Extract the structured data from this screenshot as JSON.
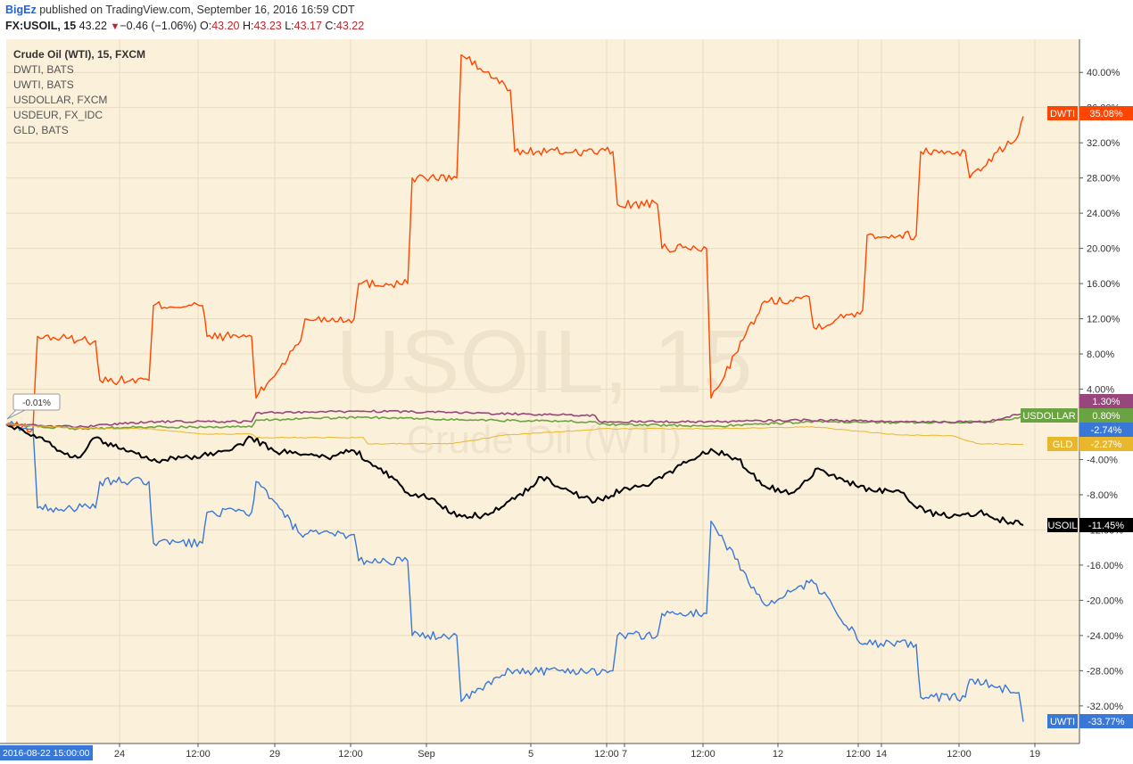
{
  "header": {
    "user": "BigEz",
    "published": "published on TradingView.com, September 16, 2016 16:59 CDT",
    "symbol": "FX:USOIL, 15",
    "last": "43.22",
    "change": "−0.46 (−1.06%)",
    "o_label": "O:",
    "o_value": "43.20",
    "h_label": "H:",
    "h_value": "43.23",
    "l_label": "L:",
    "l_value": "43.17",
    "c_label": "C:",
    "c_value": "43.22"
  },
  "watermark": {
    "symbol": "USOIL, 15",
    "name": "Crude Oil (WTI)"
  },
  "tooltip": "-0.01%",
  "colors": {
    "background": "#fbf0d9",
    "grid": "#e8dcc2",
    "DWTI": "#ff4500",
    "UWTI": "#3a78d8",
    "USOIL": "#000000",
    "USDOLLAR": "#6ba342",
    "USDEUR": "#98477c",
    "GLD": "#e8b72c"
  },
  "chart_data": {
    "type": "line",
    "title": "Crude Oil (WTI), 15, FXCM",
    "legend": [
      "DWTI, BATS",
      "UWTI, BATS",
      "USDOLLAR, FXCM",
      "USDEUR, FX_IDC",
      "GLD, BATS"
    ],
    "x_ticks": [
      "24",
      "12:00",
      "29",
      "12:00",
      "Sep",
      "5",
      "12:00",
      "7",
      "12:00",
      "12",
      "12:00",
      "14",
      "12:00",
      "19"
    ],
    "x_start_label": "2016-08-22 15:00:00",
    "y_ticks": [
      "40.00%",
      "36.00%",
      "32.00%",
      "28.00%",
      "24.00%",
      "20.00%",
      "16.00%",
      "12.00%",
      "8.00%",
      "4.00%",
      "-4.00%",
      "-8.00%",
      "-12.00%",
      "-16.00%",
      "-20.00%",
      "-24.00%",
      "-28.00%",
      "-32.00%"
    ],
    "ylim": [
      -35,
      43
    ],
    "y_unit": "%",
    "series": [
      {
        "name": "DWTI",
        "last": "35.08%",
        "x": [
          0,
          30,
          35,
          100,
          105,
          160,
          165,
          220,
          225,
          275,
          280,
          330,
          335,
          390,
          395,
          450,
          455,
          505,
          510,
          565,
          570,
          680,
          685,
          730,
          735,
          785,
          790,
          850,
          855,
          900,
          905,
          960,
          965,
          1020,
          1025,
          1075,
          1080,
          1135,
          1140
        ],
        "y": [
          0,
          -0.5,
          10,
          9.5,
          5,
          5,
          13.5,
          13.5,
          10,
          10,
          3,
          9.5,
          12,
          12,
          16,
          16,
          28,
          28,
          42,
          38,
          31,
          31,
          25,
          25,
          20,
          20,
          3,
          14,
          14,
          14.5,
          11,
          13,
          21.5,
          21.5,
          31,
          31,
          28,
          33,
          35
        ]
      },
      {
        "name": "UWTI",
        "last": "-33.77%",
        "x": [
          0,
          30,
          35,
          100,
          105,
          160,
          165,
          220,
          225,
          275,
          280,
          330,
          335,
          390,
          395,
          450,
          455,
          505,
          510,
          565,
          570,
          680,
          685,
          730,
          735,
          785,
          790,
          850,
          855,
          900,
          905,
          960,
          965,
          1020,
          1025,
          1075,
          1080,
          1135,
          1140
        ],
        "y": [
          0,
          -0.5,
          -9.5,
          -9.5,
          -6.5,
          -6.5,
          -13.5,
          -13.5,
          -10,
          -10,
          -6.5,
          -12.5,
          -12.5,
          -12.5,
          -15.5,
          -15.5,
          -24,
          -24,
          -31.5,
          -28,
          -28,
          -28,
          -24,
          -24,
          -21.5,
          -21.5,
          -11,
          -20.5,
          -20.5,
          -18,
          -18,
          -25,
          -25,
          -25,
          -31,
          -31,
          -29,
          -30.5,
          -33.8
        ]
      },
      {
        "name": "USOIL",
        "last": "-11.45%",
        "x": [
          0,
          40,
          60,
          80,
          100,
          120,
          140,
          160,
          190,
          220,
          250,
          275,
          300,
          330,
          360,
          390,
          420,
          450,
          480,
          505,
          540,
          570,
          600,
          630,
          660,
          690,
          720,
          750,
          790,
          820,
          850,
          880,
          910,
          940,
          970,
          1000,
          1030,
          1060,
          1090,
          1120,
          1140
        ],
        "y": [
          0,
          -1.5,
          -3,
          -3.8,
          -1.5,
          -2.5,
          -3,
          -4,
          -4,
          -3.5,
          -3,
          -1.5,
          -3,
          -3.5,
          -3.8,
          -3,
          -5,
          -7.8,
          -8.5,
          -10.5,
          -10.3,
          -8.5,
          -6,
          -7.5,
          -8.8,
          -7.5,
          -7,
          -5,
          -2.8,
          -4,
          -7,
          -7.8,
          -5,
          -6.5,
          -7.5,
          -7.5,
          -10,
          -10.5,
          -10,
          -11,
          -11.45
        ]
      },
      {
        "name": "USDOLLAR",
        "last": "0.80%",
        "x": [
          0,
          80,
          160,
          275,
          280,
          400,
          520,
          660,
          665,
          800,
          900,
          1000,
          1100,
          1140
        ],
        "y": [
          0,
          -0.5,
          -0.3,
          -0.3,
          0.5,
          0.8,
          0.5,
          0.3,
          0,
          -0.2,
          0.3,
          0.2,
          0.3,
          0.8
        ]
      },
      {
        "name": "USDEUR",
        "last": "1.30%",
        "x": [
          0,
          80,
          160,
          275,
          280,
          400,
          520,
          660,
          665,
          800,
          900,
          1000,
          1100,
          1140
        ],
        "y": [
          0,
          -0.3,
          0.3,
          0.3,
          1.3,
          1.5,
          1.3,
          1,
          0.3,
          0.3,
          0.5,
          0.3,
          0.3,
          1.3
        ]
      },
      {
        "name": "GLD",
        "last": "-2.27%",
        "x": [
          0,
          100,
          160,
          220,
          275,
          280,
          330,
          400,
          405,
          500,
          560,
          660,
          665,
          760,
          800,
          900,
          905,
          1000,
          1060,
          1090,
          1100,
          1140
        ],
        "y": [
          0,
          -0.5,
          -0.5,
          -1.1,
          -1.1,
          -1.5,
          -1.5,
          -1.5,
          -2.2,
          -2.2,
          -1.2,
          -0.6,
          -0.5,
          -0.5,
          -0.5,
          -0.3,
          -0.3,
          -1.2,
          -1.3,
          -2.2,
          -2.2,
          -2.27
        ]
      }
    ]
  }
}
